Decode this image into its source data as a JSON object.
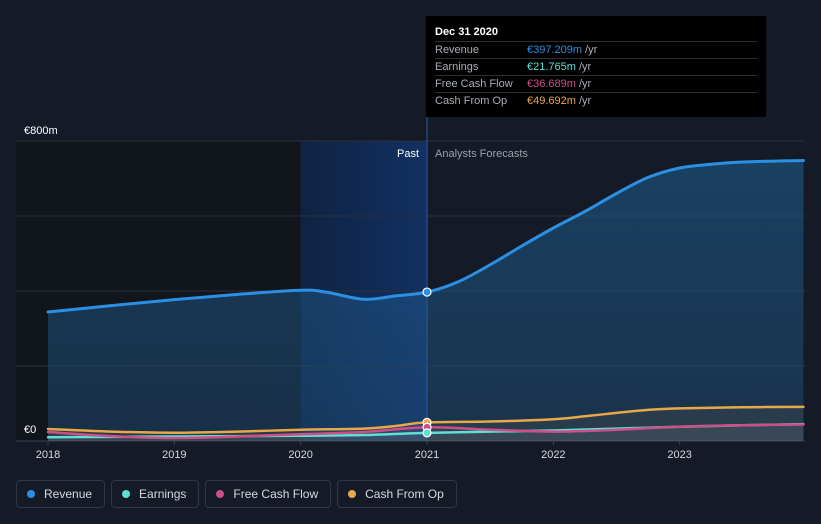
{
  "chart_data": {
    "type": "line",
    "title": "",
    "currency_unit": "€m",
    "y_axis": {
      "min": 0,
      "max": 800,
      "top_label": "€800m",
      "bottom_label": "€0"
    },
    "x_axis": {
      "range": [
        2017.99,
        2023.98
      ],
      "ticks": [
        "2018",
        "2019",
        "2020",
        "2021",
        "2022",
        "2023"
      ]
    },
    "past_label": "Past",
    "forecast_label": "Analysts Forecasts",
    "divider_x": 2021.0,
    "highlight_start_x": 2020.0,
    "series": [
      {
        "name": "Revenue",
        "color": "#2b8fe3",
        "area": true,
        "points": [
          [
            2018.0,
            344
          ],
          [
            2018.5,
            361
          ],
          [
            2019.0,
            377
          ],
          [
            2019.5,
            391
          ],
          [
            2020.0,
            402
          ],
          [
            2020.2,
            397
          ],
          [
            2020.5,
            378
          ],
          [
            2020.75,
            387
          ],
          [
            2021.0,
            397
          ],
          [
            2021.25,
            425
          ],
          [
            2021.5,
            470
          ],
          [
            2021.75,
            520
          ],
          [
            2022.0,
            568
          ],
          [
            2022.25,
            612
          ],
          [
            2022.5,
            660
          ],
          [
            2022.75,
            703
          ],
          [
            2023.0,
            728
          ],
          [
            2023.25,
            738
          ],
          [
            2023.5,
            744
          ],
          [
            2023.98,
            748
          ]
        ]
      },
      {
        "name": "Earnings",
        "color": "#5ce1d2",
        "area": false,
        "points": [
          [
            2018.0,
            10
          ],
          [
            2018.5,
            11
          ],
          [
            2019.0,
            12
          ],
          [
            2019.5,
            13
          ],
          [
            2020.0,
            14
          ],
          [
            2020.5,
            16
          ],
          [
            2021.0,
            21.8
          ],
          [
            2021.5,
            25
          ],
          [
            2022.0,
            28
          ],
          [
            2022.5,
            33
          ],
          [
            2023.0,
            38
          ],
          [
            2023.5,
            42
          ],
          [
            2023.98,
            45
          ]
        ]
      },
      {
        "name": "Free Cash Flow",
        "color": "#cc4f8a",
        "area": false,
        "points": [
          [
            2018.0,
            24
          ],
          [
            2018.5,
            13
          ],
          [
            2019.0,
            8
          ],
          [
            2019.5,
            12
          ],
          [
            2020.0,
            18
          ],
          [
            2020.5,
            24
          ],
          [
            2021.0,
            36.7
          ],
          [
            2021.5,
            30
          ],
          [
            2022.0,
            25
          ],
          [
            2022.5,
            30
          ],
          [
            2023.0,
            38
          ],
          [
            2023.5,
            42
          ],
          [
            2023.98,
            44
          ]
        ]
      },
      {
        "name": "Cash From Op",
        "color": "#e8a849",
        "area": false,
        "points": [
          [
            2018.0,
            32
          ],
          [
            2018.5,
            25
          ],
          [
            2019.0,
            22
          ],
          [
            2019.5,
            25
          ],
          [
            2020.0,
            30
          ],
          [
            2020.5,
            33
          ],
          [
            2020.75,
            40
          ],
          [
            2021.0,
            49.7
          ],
          [
            2021.5,
            52
          ],
          [
            2022.0,
            58
          ],
          [
            2022.25,
            66
          ],
          [
            2022.5,
            75
          ],
          [
            2022.75,
            83
          ],
          [
            2023.0,
            87
          ],
          [
            2023.5,
            90
          ],
          [
            2023.98,
            91
          ]
        ]
      }
    ],
    "highlight_points": [
      {
        "series": "Revenue",
        "x": 2021.0,
        "y": 397.209
      },
      {
        "series": "Cash From Op",
        "x": 2021.0,
        "y": 49.692
      },
      {
        "series": "Free Cash Flow",
        "x": 2021.0,
        "y": 36.689
      },
      {
        "series": "Earnings",
        "x": 2021.0,
        "y": 21.765
      }
    ]
  },
  "tooltip": {
    "date": "Dec 31 2020",
    "rows": [
      {
        "name": "Revenue",
        "value": "€397.209m",
        "unit": "/yr",
        "color": "#2b8fe3"
      },
      {
        "name": "Earnings",
        "value": "€21.765m",
        "unit": "/yr",
        "color": "#5ce1d2"
      },
      {
        "name": "Free Cash Flow",
        "value": "€36.689m",
        "unit": "/yr",
        "color": "#cc4f8a"
      },
      {
        "name": "Cash From Op",
        "value": "€49.692m",
        "unit": "/yr",
        "color": "#e8a849"
      }
    ]
  },
  "legend": [
    {
      "label": "Revenue",
      "color": "#2b8fe3"
    },
    {
      "label": "Earnings",
      "color": "#5ce1d2"
    },
    {
      "label": "Free Cash Flow",
      "color": "#cc4f8a"
    },
    {
      "label": "Cash From Op",
      "color": "#e8a849"
    }
  ]
}
